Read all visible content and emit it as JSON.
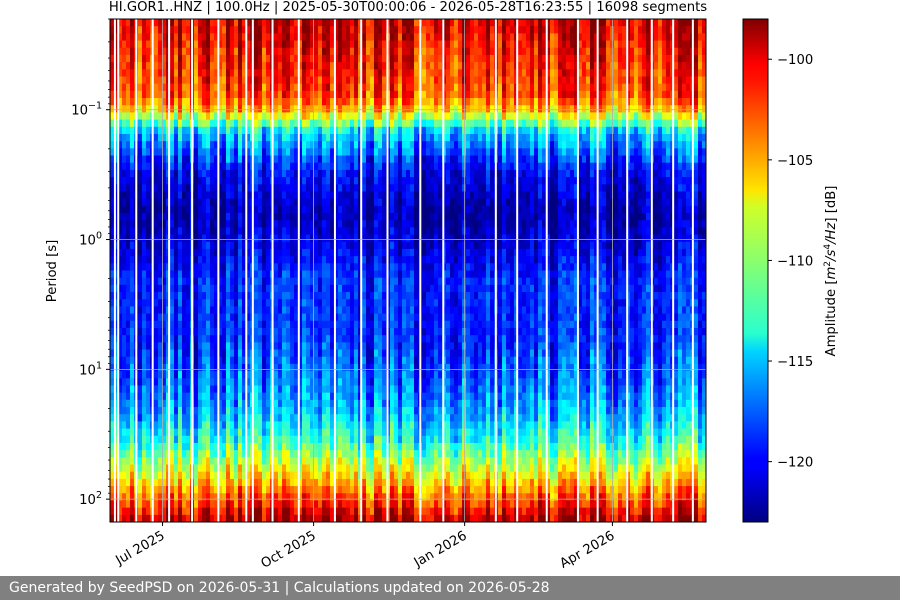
{
  "chart_data": {
    "type": "heatmap",
    "title": "HI.GOR1..HNZ | 100.0Hz | 2025-05-30T00:00:06 - 2026-05-28T16:23:55 | 16098 segments",
    "xlabel": "",
    "ylabel": "Period [s]",
    "y_scale": "log",
    "y_inverted": true,
    "ylim": [
      0.02,
      150
    ],
    "xlim": [
      "2025-05-30",
      "2026-05-28"
    ],
    "x_tick_labels": [
      "Jul 2025",
      "Oct 2025",
      "Jan 2026",
      "Apr 2026"
    ],
    "x_tick_dates": [
      "2025-07-01",
      "2025-10-01",
      "2026-01-01",
      "2026-04-01"
    ],
    "y_ticks": [
      {
        "value": 0.1,
        "base": "10",
        "exp": "−1"
      },
      {
        "value": 1,
        "base": "10",
        "exp": "0"
      },
      {
        "value": 10,
        "base": "10",
        "exp": "1"
      },
      {
        "value": 100,
        "base": "10",
        "exp": "2"
      }
    ],
    "grid": true,
    "colormap": "jet",
    "colorbar": {
      "label": "Amplitude [m²/s⁴/Hz] [dB]",
      "label_parts": [
        "Amplitude [",
        "m",
        "2",
        "/s",
        "4",
        "/Hz",
        "] [dB]"
      ],
      "range": [
        -123,
        -98
      ],
      "ticks": [
        -100,
        -105,
        -110,
        -115,
        -120
      ],
      "tick_labels": [
        "−100",
        "−105",
        "−110",
        "−115",
        "−120"
      ]
    },
    "period_profile": [
      {
        "period": 0.02,
        "amplitude": -100
      },
      {
        "period": 0.03,
        "amplitude": -101
      },
      {
        "period": 0.05,
        "amplitude": -102
      },
      {
        "period": 0.08,
        "amplitude": -103
      },
      {
        "period": 0.1,
        "amplitude": -106
      },
      {
        "period": 0.15,
        "amplitude": -115
      },
      {
        "period": 0.3,
        "amplitude": -120
      },
      {
        "period": 0.6,
        "amplitude": -122
      },
      {
        "period": 1,
        "amplitude": -121
      },
      {
        "period": 2,
        "amplitude": -119
      },
      {
        "period": 5,
        "amplitude": -119
      },
      {
        "period": 10,
        "amplitude": -118
      },
      {
        "period": 20,
        "amplitude": -116
      },
      {
        "period": 35,
        "amplitude": -113
      },
      {
        "period": 60,
        "amplitude": -108
      },
      {
        "period": 100,
        "amplitude": -103
      },
      {
        "period": 150,
        "amplitude": -99
      }
    ],
    "vertical_gaps": [
      "2025-06-02",
      "2025-06-04",
      "2025-06-15",
      "2025-06-25",
      "2025-07-05",
      "2025-07-19",
      "2025-08-04",
      "2025-08-21",
      "2025-08-25",
      "2025-09-06",
      "2025-09-22",
      "2025-10-14",
      "2025-10-30",
      "2025-11-15",
      "2025-12-05",
      "2025-12-19",
      "2026-01-20",
      "2026-02-02",
      "2026-02-20",
      "2026-03-11",
      "2026-03-23",
      "2026-04-10",
      "2026-04-25",
      "2026-05-08",
      "2026-05-20"
    ]
  },
  "footer": {
    "text": "Generated by SeedPSD on 2026-05-31 | Calculations updated on 2026-05-28"
  }
}
